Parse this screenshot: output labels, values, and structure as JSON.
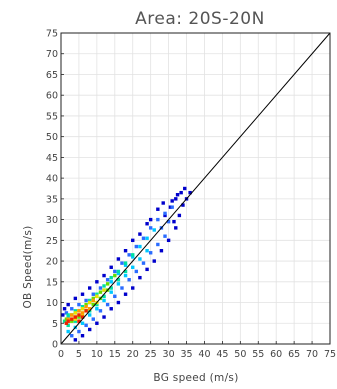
{
  "chart_data": {
    "type": "scatter",
    "title": "Area: 20S-20N",
    "xlabel": "BG speed (m/s)",
    "ylabel": "OB Speed(m/s)",
    "xlim": [
      0,
      75
    ],
    "ylim": [
      0,
      75
    ],
    "xticks": [
      0,
      5,
      10,
      15,
      20,
      25,
      30,
      35,
      40,
      45,
      50,
      55,
      60,
      65,
      70,
      75
    ],
    "yticks": [
      0,
      5,
      10,
      15,
      20,
      25,
      30,
      35,
      40,
      45,
      50,
      55,
      60,
      65,
      70,
      75
    ],
    "grid": true,
    "reference_line": {
      "from": [
        0,
        0
      ],
      "to": [
        75,
        75
      ],
      "color": "#000000"
    },
    "density_colors": [
      "#0000cc",
      "#2b6cff",
      "#00c8ff",
      "#00e0a0",
      "#66dd00",
      "#f0e000",
      "#ff9900",
      "#ee2200"
    ],
    "density_series": [
      {
        "level": 0,
        "points": [
          [
            33.5,
            36.5
          ],
          [
            34.5,
            37.5
          ],
          [
            32,
            35
          ],
          [
            31,
            34.5
          ],
          [
            32.5,
            36
          ],
          [
            28.5,
            34
          ],
          [
            27,
            32.5
          ],
          [
            25,
            30
          ],
          [
            24,
            29
          ],
          [
            22,
            26.5
          ],
          [
            20,
            25
          ],
          [
            18,
            22.5
          ],
          [
            16,
            20.5
          ],
          [
            14,
            18.5
          ],
          [
            12,
            16.5
          ],
          [
            10,
            15
          ],
          [
            8,
            13.5
          ],
          [
            6,
            12
          ],
          [
            4,
            11
          ],
          [
            2,
            9.5
          ],
          [
            1,
            8.5
          ],
          [
            0.5,
            7
          ],
          [
            33,
            31
          ],
          [
            32,
            28
          ],
          [
            30,
            25
          ],
          [
            28,
            22.5
          ],
          [
            26,
            20
          ],
          [
            24,
            18
          ],
          [
            22,
            16
          ],
          [
            20,
            13.5
          ],
          [
            18,
            12
          ],
          [
            16,
            10
          ],
          [
            14,
            8.5
          ],
          [
            12,
            6.5
          ],
          [
            10,
            5
          ],
          [
            8,
            3.5
          ],
          [
            6,
            2
          ],
          [
            4,
            1
          ],
          [
            34,
            33.5
          ],
          [
            35,
            35
          ],
          [
            30.5,
            33
          ],
          [
            29,
            31
          ],
          [
            36,
            36.5
          ],
          [
            31.5,
            29.5
          ]
        ]
      },
      {
        "level": 1,
        "points": [
          [
            31,
            33
          ],
          [
            29,
            31.5
          ],
          [
            27,
            30
          ],
          [
            25,
            28
          ],
          [
            23,
            25.5
          ],
          [
            21,
            23.5
          ],
          [
            19,
            21.5
          ],
          [
            17,
            19.5
          ],
          [
            15,
            17.5
          ],
          [
            13,
            15.5
          ],
          [
            11,
            13.5
          ],
          [
            9,
            12
          ],
          [
            7,
            10.5
          ],
          [
            5,
            9.5
          ],
          [
            3,
            8.5
          ],
          [
            1.5,
            7.5
          ],
          [
            29,
            26
          ],
          [
            27,
            24
          ],
          [
            25,
            22
          ],
          [
            23,
            19.5
          ],
          [
            21,
            17.5
          ],
          [
            19,
            15.5
          ],
          [
            17,
            13.5
          ],
          [
            15,
            11.5
          ],
          [
            13,
            9.5
          ],
          [
            11,
            8
          ],
          [
            9,
            6
          ],
          [
            7,
            4.5
          ],
          [
            5,
            3
          ],
          [
            3,
            2
          ],
          [
            30,
            29.5
          ],
          [
            28,
            28
          ]
        ]
      },
      {
        "level": 2,
        "points": [
          [
            26,
            27.5
          ],
          [
            24,
            25.5
          ],
          [
            22,
            23.5
          ],
          [
            20,
            21
          ],
          [
            18,
            19
          ],
          [
            16,
            17
          ],
          [
            14,
            15
          ],
          [
            12,
            13
          ],
          [
            10,
            11.5
          ],
          [
            8,
            10
          ],
          [
            6,
            8.5
          ],
          [
            4,
            7.5
          ],
          [
            2,
            6.5
          ],
          [
            24,
            22.5
          ],
          [
            22,
            20.5
          ],
          [
            20,
            18.5
          ],
          [
            18,
            16.5
          ],
          [
            16,
            14.5
          ],
          [
            14,
            12.5
          ],
          [
            12,
            10.5
          ],
          [
            10,
            8.5
          ],
          [
            8,
            7
          ],
          [
            6,
            5
          ],
          [
            4,
            4
          ],
          [
            2,
            3
          ]
        ]
      },
      {
        "level": 3,
        "points": [
          [
            20,
            21.5
          ],
          [
            18,
            19.5
          ],
          [
            16,
            17.5
          ],
          [
            14,
            16
          ],
          [
            12,
            14
          ],
          [
            10,
            12
          ],
          [
            8,
            10.5
          ],
          [
            6,
            9
          ],
          [
            4,
            8
          ],
          [
            2,
            7
          ],
          [
            18,
            17.5
          ],
          [
            16,
            15.5
          ],
          [
            14,
            13.5
          ],
          [
            12,
            11.5
          ],
          [
            10,
            9.5
          ],
          [
            8,
            8
          ],
          [
            6,
            6.5
          ],
          [
            4,
            5.5
          ],
          [
            2,
            4.5
          ],
          [
            1,
            5.5
          ]
        ]
      },
      {
        "level": 4,
        "points": [
          [
            15,
            16.5
          ],
          [
            13,
            14.5
          ],
          [
            11,
            12.5
          ],
          [
            9,
            11
          ],
          [
            7,
            9.5
          ],
          [
            5,
            8
          ],
          [
            3,
            7
          ],
          [
            13,
            13
          ],
          [
            11,
            11
          ],
          [
            9,
            9.5
          ],
          [
            7,
            8
          ],
          [
            5,
            6.5
          ],
          [
            3,
            5.5
          ],
          [
            1.5,
            6
          ]
        ]
      },
      {
        "level": 5,
        "points": [
          [
            12,
            13
          ],
          [
            10,
            11.5
          ],
          [
            8,
            10
          ],
          [
            6,
            8.5
          ],
          [
            4,
            7.5
          ],
          [
            10,
            10
          ],
          [
            8,
            8.5
          ],
          [
            6,
            7
          ],
          [
            4,
            6
          ],
          [
            2,
            5.5
          ]
        ]
      },
      {
        "level": 6,
        "points": [
          [
            9,
            10.5
          ],
          [
            7,
            9
          ],
          [
            5,
            8
          ],
          [
            3,
            7
          ],
          [
            8,
            8.5
          ],
          [
            6,
            7.5
          ],
          [
            4,
            6.5
          ],
          [
            2,
            6
          ]
        ]
      },
      {
        "level": 7,
        "points": [
          [
            7,
            8
          ],
          [
            5,
            7
          ],
          [
            4,
            6.5
          ],
          [
            3,
            6
          ],
          [
            6,
            6.5
          ],
          [
            2,
            5.5
          ],
          [
            5,
            5.5
          ],
          [
            1.5,
            5
          ]
        ]
      }
    ]
  }
}
